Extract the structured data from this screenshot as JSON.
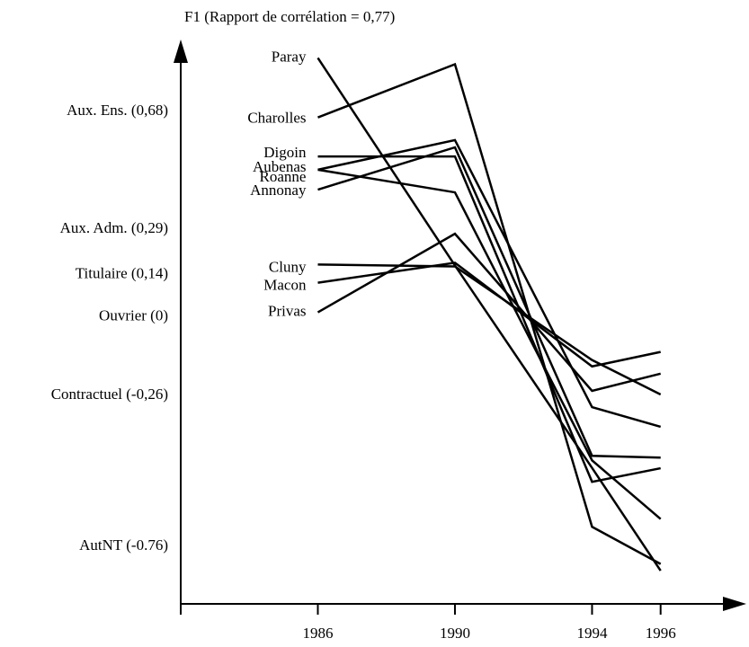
{
  "chart_data": {
    "type": "line",
    "title": "F1 (Rapport de corrélation = 0,77)",
    "x": [
      1986,
      1990,
      1994,
      1996
    ],
    "xlim": [
      1982,
      1998.5
    ],
    "xticks": [
      1986,
      1990,
      1994,
      1996
    ],
    "ylim": [
      -0.95,
      0.9
    ],
    "yticks": [
      {
        "value": 0.68,
        "label": "Aux. Ens. (0,68)"
      },
      {
        "value": 0.29,
        "label": "Aux. Adm. (0,29)"
      },
      {
        "value": 0.14,
        "label": "Titulaire (0,14)"
      },
      {
        "value": 0,
        "label": "Ouvrier (0)"
      },
      {
        "value": -0.26,
        "label": "Contractuel (-0,26)"
      },
      {
        "value": -0.76,
        "label": "AutNT (-0.76)"
      }
    ],
    "series": [
      {
        "name": "Paray",
        "color": "#000000",
        "values": [
          0.857,
          0.17,
          -0.5,
          -0.84
        ]
      },
      {
        "name": "Charolles",
        "color": "#000000",
        "values": [
          0.66,
          0.836,
          -0.695,
          -0.818
        ]
      },
      {
        "name": "Digoin",
        "color": "#000000",
        "values": [
          0.531,
          0.531,
          -0.546,
          -0.501
        ]
      },
      {
        "name": "Aubenas",
        "color": "#000000",
        "values": [
          0.487,
          0.585,
          -0.299,
          -0.364
        ]
      },
      {
        "name": "Roanne",
        "color": "#000000",
        "values": [
          0.487,
          0.412,
          -0.475,
          -0.669
        ]
      },
      {
        "name": "Annonay",
        "color": "#000000",
        "values": [
          0.421,
          0.561,
          -0.46,
          -0.466
        ]
      },
      {
        "name": "Cluny",
        "color": "#000000",
        "values": [
          0.173,
          0.167,
          -0.143,
          -0.257
        ]
      },
      {
        "name": "Macon",
        "color": "#000000",
        "values": [
          0.113,
          0.179,
          -0.164,
          -0.116
        ]
      },
      {
        "name": "Privas",
        "color": "#000000",
        "values": [
          0.015,
          0.275,
          -0.245,
          -0.188
        ]
      }
    ]
  }
}
